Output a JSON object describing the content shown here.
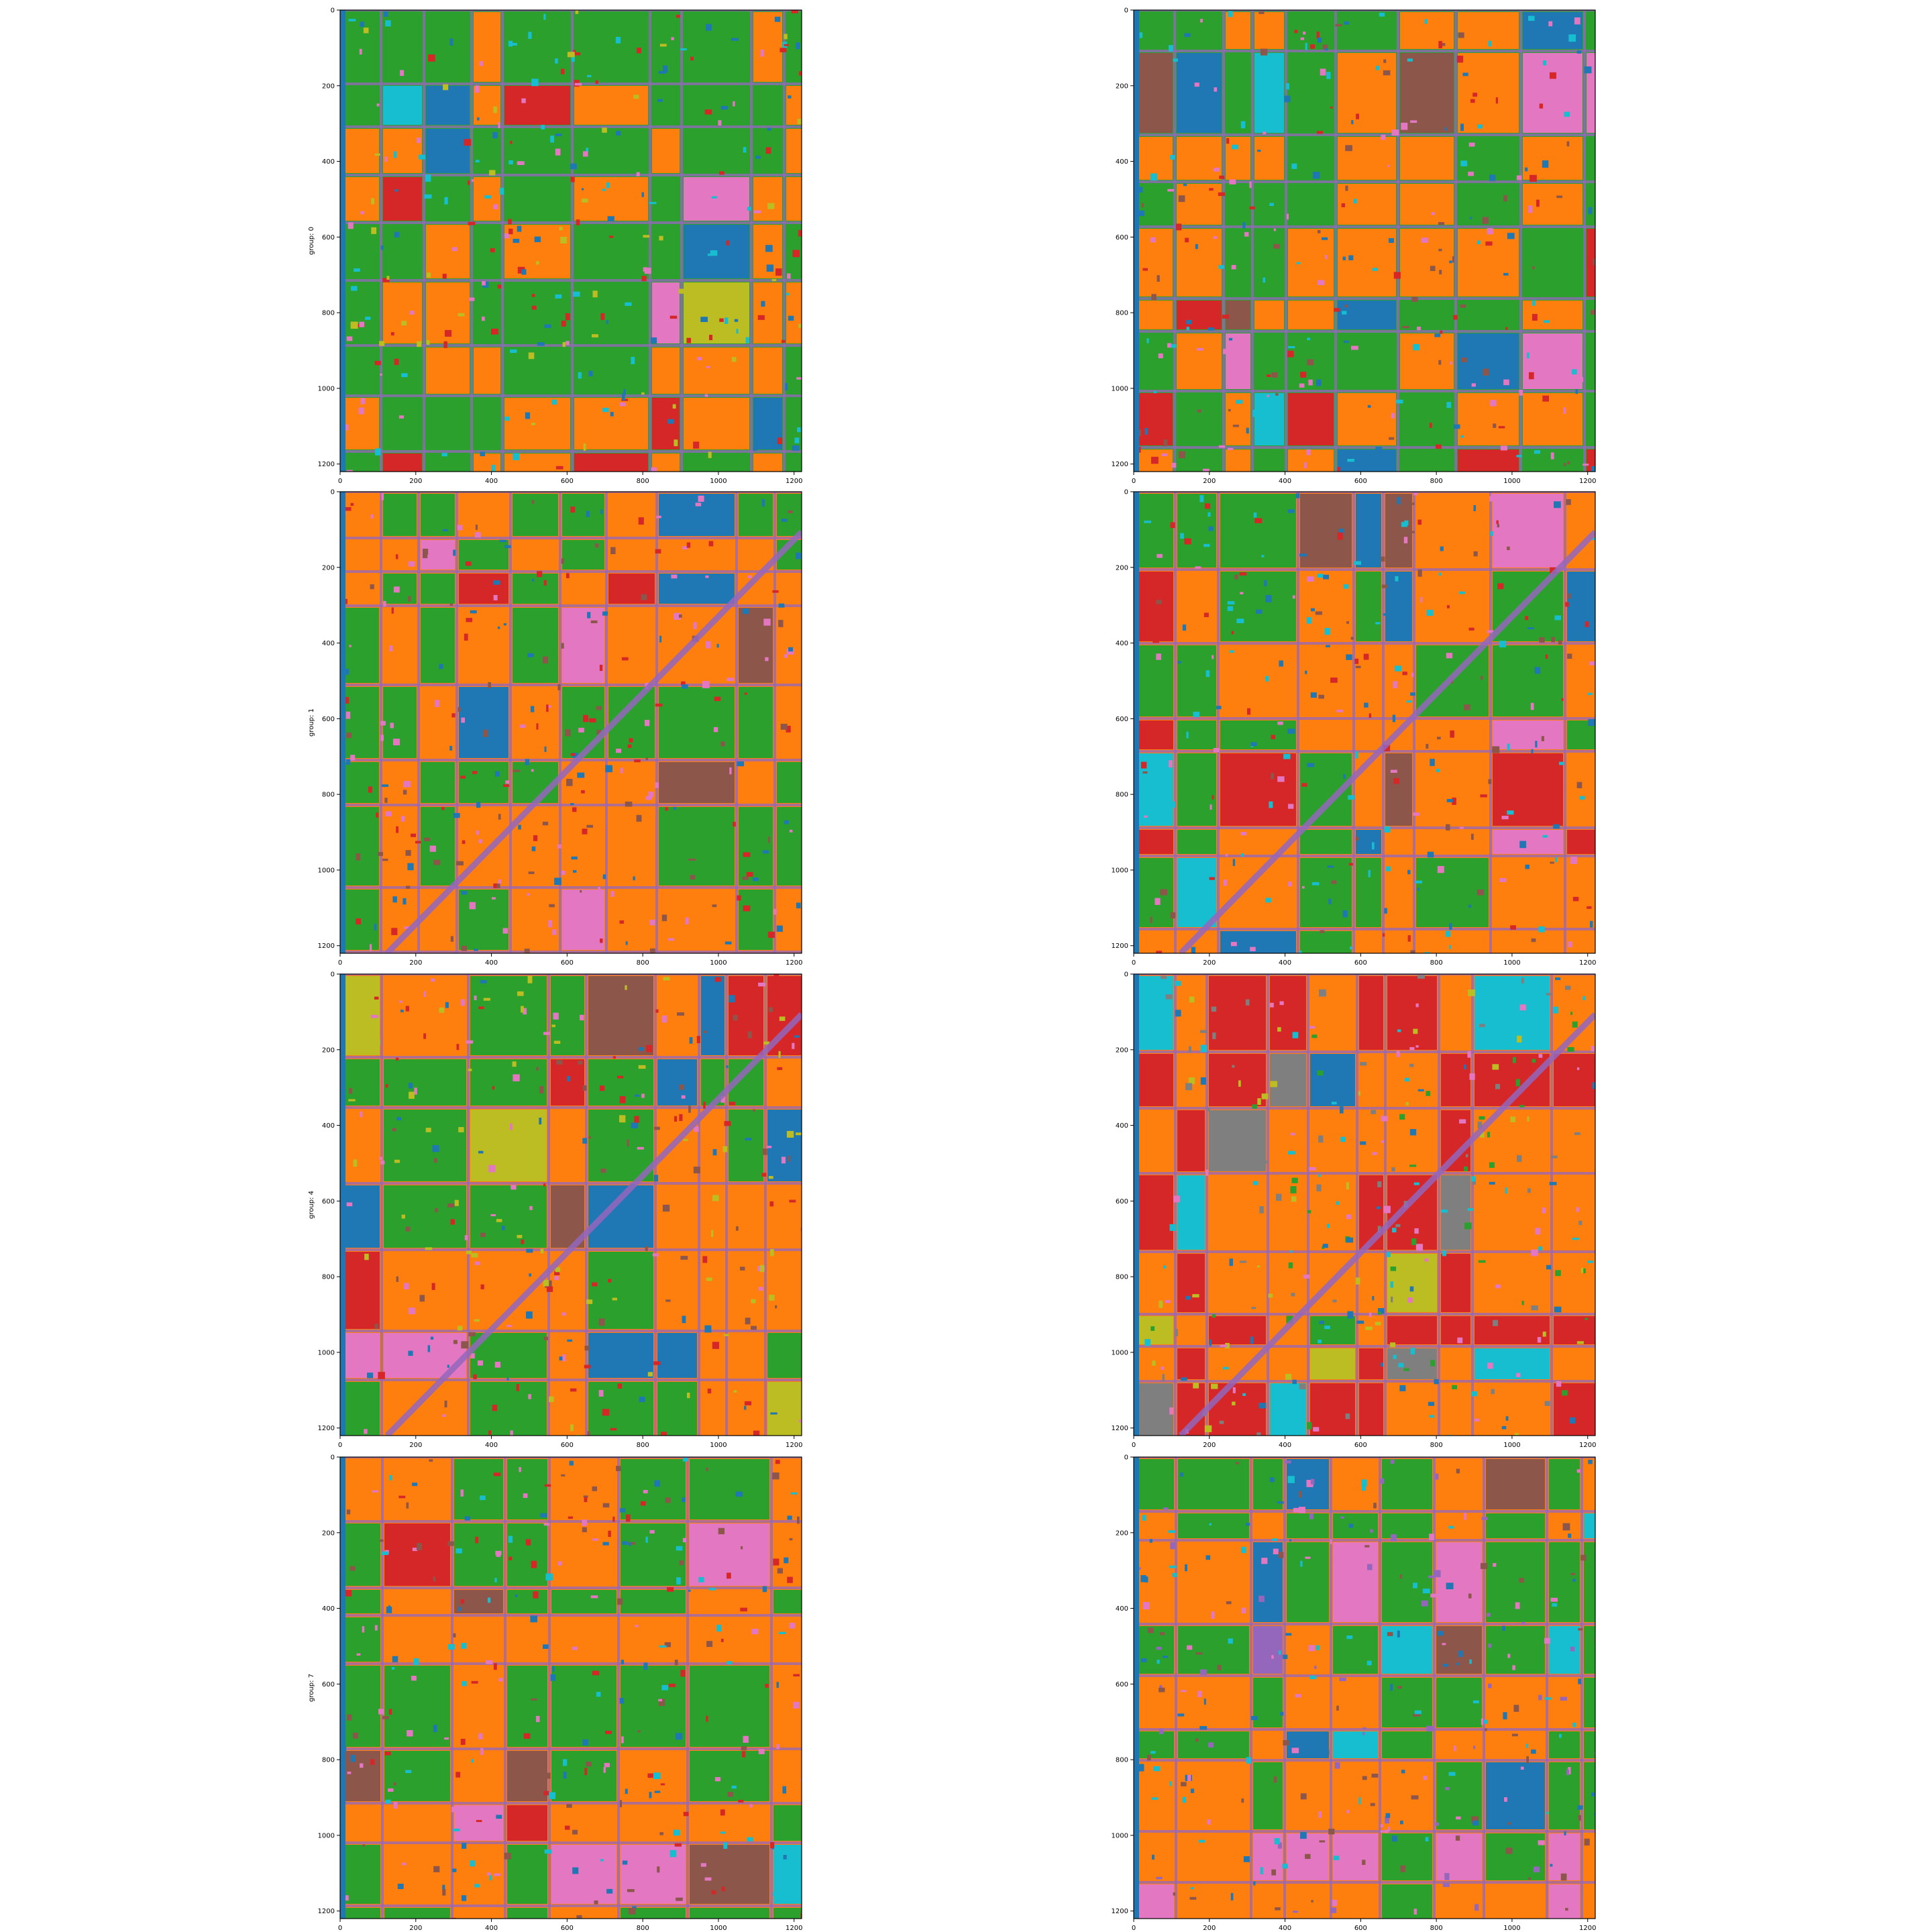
{
  "colors": {
    "tab_blue": "#1f77b4",
    "tab_orange": "#ff7f0e",
    "tab_green": "#2ca02c",
    "tab_red": "#d62728",
    "tab_purple": "#9467bd",
    "tab_brown": "#8c564b",
    "tab_pink": "#e377c2",
    "tab_gray": "#7f7f7f",
    "tab_olive": "#bcbd22",
    "tab_cyan": "#17becf"
  },
  "chart_data": [
    {
      "type": "heatmap",
      "title": "",
      "ylabel": "group: 0",
      "xlim": [
        0,
        1220
      ],
      "ylim": [
        1220,
        0
      ],
      "xticks": [
        "0",
        "200",
        "400",
        "600",
        "800",
        "1000",
        "1200"
      ],
      "yticks": [
        "0",
        "200",
        "400",
        "600",
        "800",
        "1000",
        "1200"
      ],
      "seed": 11,
      "base": "tab_green",
      "secondary": "tab_orange",
      "accents": [
        "tab_red",
        "tab_olive",
        "tab_pink",
        "tab_blue",
        "tab_cyan"
      ]
    },
    {
      "type": "heatmap",
      "title": "",
      "ylabel": "",
      "xlim": [
        0,
        1220
      ],
      "ylim": [
        1220,
        0
      ],
      "xticks": [
        "0",
        "200",
        "400",
        "600",
        "800",
        "1000",
        "1200"
      ],
      "yticks": [
        "0",
        "200",
        "400",
        "600",
        "800",
        "1000",
        "1200"
      ],
      "seed": 12,
      "base": "tab_green",
      "secondary": "tab_orange",
      "accents": [
        "tab_red",
        "tab_brown",
        "tab_cyan",
        "tab_pink",
        "tab_blue"
      ]
    },
    {
      "type": "heatmap",
      "title": "",
      "ylabel": "group: 1",
      "xlim": [
        0,
        1220
      ],
      "ylim": [
        1220,
        0
      ],
      "xticks": [
        "0",
        "200",
        "400",
        "600",
        "800",
        "1000",
        "1200"
      ],
      "yticks": [
        "0",
        "200",
        "400",
        "600",
        "800",
        "1000",
        "1200"
      ],
      "seed": 21,
      "base": "tab_orange",
      "secondary": "tab_green",
      "accents": [
        "tab_red",
        "tab_brown",
        "tab_pink",
        "tab_blue"
      ]
    },
    {
      "type": "heatmap",
      "title": "",
      "ylabel": "",
      "xlim": [
        0,
        1220
      ],
      "ylim": [
        1220,
        0
      ],
      "xticks": [
        "0",
        "200",
        "400",
        "600",
        "800",
        "1000",
        "1200"
      ],
      "yticks": [
        "0",
        "200",
        "400",
        "600",
        "800",
        "1000",
        "1200"
      ],
      "seed": 22,
      "base": "tab_orange",
      "secondary": "tab_green",
      "accents": [
        "tab_red",
        "tab_brown",
        "tab_cyan",
        "tab_blue",
        "tab_pink"
      ]
    },
    {
      "type": "heatmap",
      "title": "",
      "ylabel": "group: 4",
      "xlim": [
        0,
        1220
      ],
      "ylim": [
        1220,
        0
      ],
      "xticks": [
        "0",
        "200",
        "400",
        "600",
        "800",
        "1000",
        "1200"
      ],
      "yticks": [
        "0",
        "200",
        "400",
        "600",
        "800",
        "1000",
        "1200"
      ],
      "seed": 41,
      "base": "tab_orange",
      "secondary": "tab_green",
      "accents": [
        "tab_red",
        "tab_pink",
        "tab_brown",
        "tab_blue",
        "tab_olive"
      ]
    },
    {
      "type": "heatmap",
      "title": "",
      "ylabel": "",
      "xlim": [
        0,
        1220
      ],
      "ylim": [
        1220,
        0
      ],
      "xticks": [
        "0",
        "200",
        "400",
        "600",
        "800",
        "1000",
        "1200"
      ],
      "yticks": [
        "0",
        "200",
        "400",
        "600",
        "800",
        "1000",
        "1200"
      ],
      "seed": 42,
      "base": "tab_orange",
      "secondary": "tab_red",
      "accents": [
        "tab_green",
        "tab_pink",
        "tab_gray",
        "tab_blue",
        "tab_olive",
        "tab_cyan"
      ]
    },
    {
      "type": "heatmap",
      "title": "",
      "ylabel": "group: 7",
      "xlim": [
        0,
        1220
      ],
      "ylim": [
        1220,
        0
      ],
      "xticks": [
        "0",
        "200",
        "400",
        "600",
        "800",
        "1000",
        "1200"
      ],
      "yticks": [
        "0",
        "200",
        "400",
        "600",
        "800",
        "1000",
        "1200"
      ],
      "seed": 71,
      "base": "tab_orange",
      "secondary": "tab_green",
      "accents": [
        "tab_pink",
        "tab_brown",
        "tab_blue",
        "tab_cyan",
        "tab_red"
      ]
    },
    {
      "type": "heatmap",
      "title": "",
      "ylabel": "",
      "xlim": [
        0,
        1220
      ],
      "ylim": [
        1220,
        0
      ],
      "xticks": [
        "0",
        "200",
        "400",
        "600",
        "800",
        "1000",
        "1200"
      ],
      "yticks": [
        "0",
        "200",
        "400",
        "600",
        "800",
        "1000",
        "1200"
      ],
      "seed": 72,
      "base": "tab_orange",
      "secondary": "tab_green",
      "accents": [
        "tab_blue",
        "tab_brown",
        "tab_cyan",
        "tab_pink",
        "tab_purple"
      ]
    }
  ]
}
